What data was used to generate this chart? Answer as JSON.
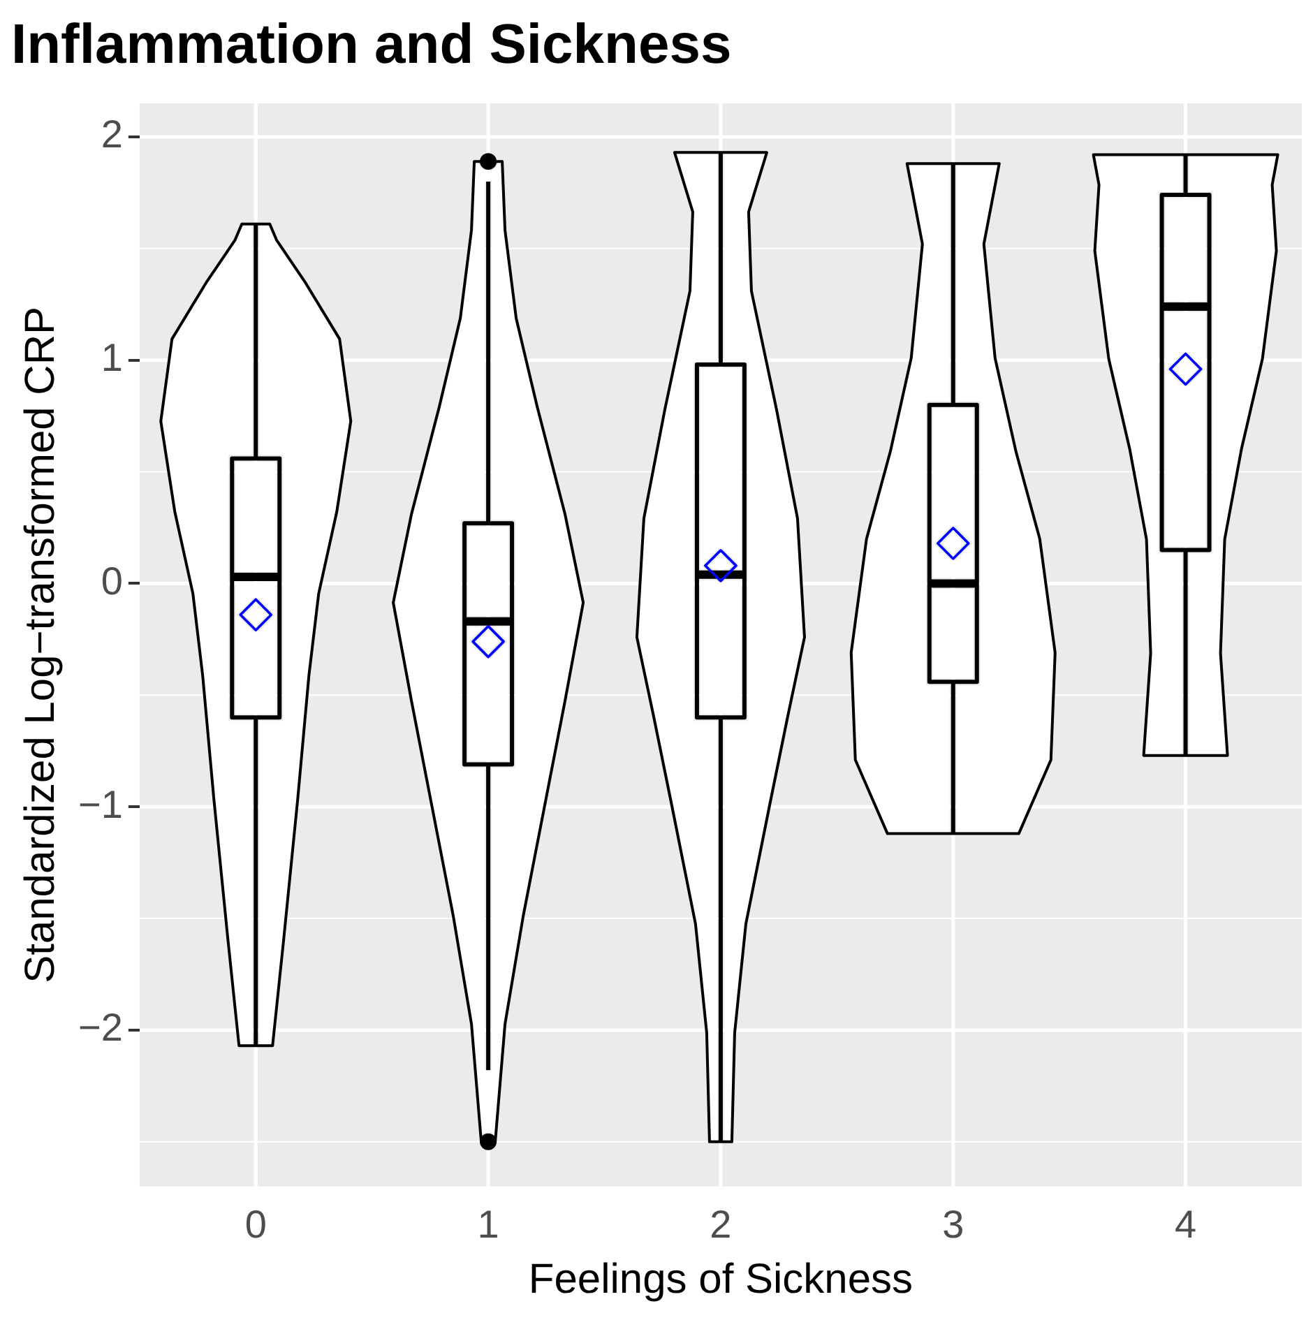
{
  "chart_data": {
    "type": "box",
    "title": "Inflammation and Sickness",
    "xlabel": "Feelings of Sickness",
    "ylabel": "Standardized Log−transformed CRP",
    "categories": [
      "0",
      "1",
      "2",
      "3",
      "4"
    ],
    "boxes": [
      {
        "low": -2.07,
        "q1": -0.6,
        "median": 0.03,
        "q3": 0.56,
        "high": 1.61,
        "mean": -0.14
      },
      {
        "low": -2.18,
        "q1": -0.81,
        "median": -0.17,
        "q3": 0.27,
        "high": 1.8,
        "mean": -0.26,
        "outliers": [
          -2.5,
          1.89
        ]
      },
      {
        "low": -2.5,
        "q1": -0.6,
        "median": 0.04,
        "q3": 0.98,
        "high": 1.93,
        "mean": 0.08
      },
      {
        "low": -1.12,
        "q1": -0.44,
        "median": 0.0,
        "q3": 0.8,
        "high": 1.88,
        "mean": 0.18
      },
      {
        "low": -0.77,
        "q1": 0.15,
        "median": 1.24,
        "q3": 1.74,
        "high": 1.92,
        "mean": 0.96
      }
    ],
    "ylim": [
      -2.7,
      2.15
    ],
    "yticks": [
      -2,
      -1,
      0,
      1,
      2
    ],
    "grid": true
  }
}
